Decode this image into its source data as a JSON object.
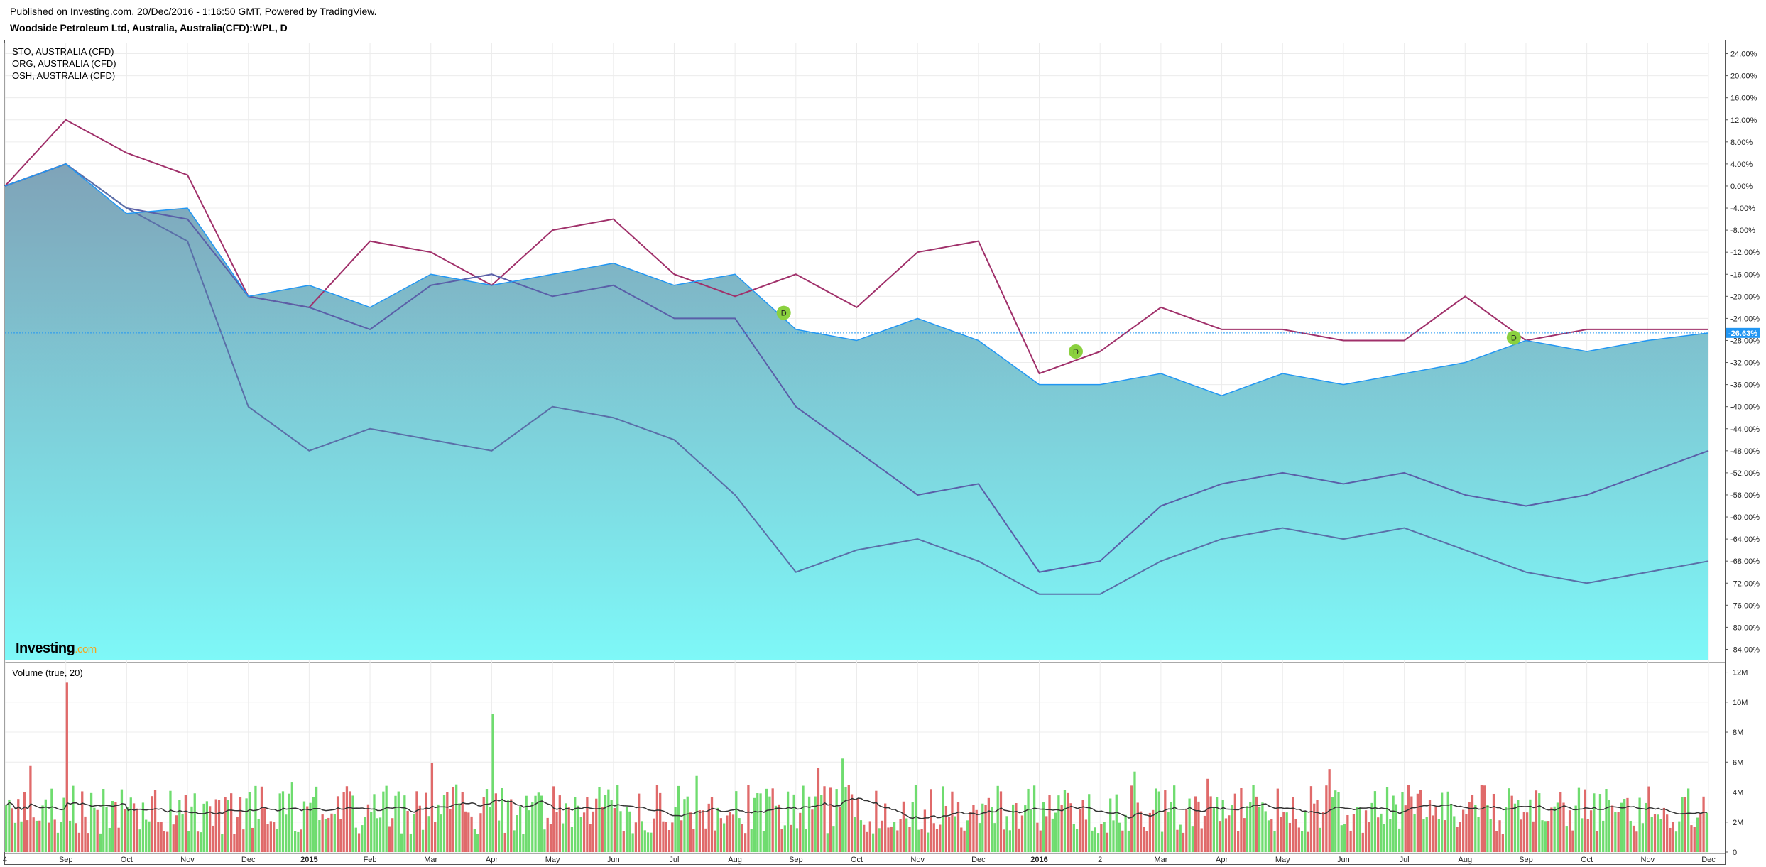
{
  "header": {
    "published": "Published on Investing.com, 20/Dec/2016 - 1:16:50 GMT, Powered by TradingView.",
    "symbol": "Woodside Petroleum Ltd, Australia, Australia(CFD):WPL, D"
  },
  "legend": [
    "STO, AUSTRALIA (CFD)",
    "ORG, AUSTRALIA (CFD)",
    "OSH, AUSTRALIA (CFD)"
  ],
  "volume_label": "Volume (true, 20)",
  "logo": {
    "main": "Investing",
    "suffix": ".com"
  },
  "last_value_label": "-26.63%",
  "colors": {
    "main_line": "#2196f3",
    "area_top": "#7fa3b8",
    "area_bottom": "#7ef8f8",
    "sto": "#a0306a",
    "org": "#5a5fa8",
    "osh": "#5a6fa8",
    "vol_up": "#6fdc6f",
    "vol_down": "#e06a6a",
    "vol_ma": "#333333",
    "dividend": "#8bd13f"
  },
  "chart_data": [
    {
      "type": "area",
      "title": "",
      "x_ticks": [
        "4",
        "Sep",
        "Oct",
        "Nov",
        "Dec",
        "2015",
        "Feb",
        "Mar",
        "Apr",
        "May",
        "Jun",
        "Jul",
        "Aug",
        "Sep",
        "Oct",
        "Nov",
        "Dec",
        "2016",
        "2",
        "Mar",
        "Apr",
        "May",
        "Jun",
        "Jul",
        "Aug",
        "Sep",
        "Oct",
        "Nov",
        "Dec"
      ],
      "y_ticks": [
        "24.00%",
        "20.00%",
        "16.00%",
        "12.00%",
        "8.00%",
        "4.00%",
        "0.00%",
        "-4.00%",
        "-8.00%",
        "-12.00%",
        "-16.00%",
        "-20.00%",
        "-24.00%",
        "-28.00%",
        "-32.00%",
        "-36.00%",
        "-40.00%",
        "-44.00%",
        "-48.00%",
        "-52.00%",
        "-56.00%",
        "-60.00%",
        "-64.00%",
        "-68.00%",
        "-72.00%",
        "-76.00%",
        "-80.00%",
        "-84.00%"
      ],
      "ylim": [
        -86,
        26
      ],
      "x": [
        0,
        1,
        2,
        3,
        4,
        5,
        6,
        7,
        8,
        9,
        10,
        11,
        12,
        13,
        14,
        15,
        16,
        17,
        18,
        19,
        20,
        21,
        22,
        23,
        24,
        25,
        26,
        27,
        28
      ],
      "series": [
        {
          "name": "Woodside Petroleum Ltd, Australia, Australia(CFD):WPL, D",
          "values": [
            0,
            4,
            -5,
            -4,
            -20,
            -18,
            -22,
            -16,
            -18,
            -16,
            -14,
            -18,
            -16,
            -26,
            -28,
            -24,
            -28,
            -36,
            -36,
            -34,
            -38,
            -34,
            -36,
            -34,
            -32,
            -28,
            -30,
            -28,
            -26.63
          ]
        },
        {
          "name": "STO, AUSTRALIA (CFD)",
          "values": [
            0,
            12,
            6,
            2,
            -20,
            -22,
            -10,
            -12,
            -18,
            -8,
            -6,
            -16,
            -20,
            -16,
            -22,
            -12,
            -10,
            -34,
            -30,
            -22,
            -26,
            -26,
            -28,
            -28,
            -20,
            -28,
            -26,
            -26,
            -26
          ]
        },
        {
          "name": "ORG, AUSTRALIA (CFD)",
          "values": [
            0,
            4,
            -4,
            -6,
            -20,
            -22,
            -26,
            -18,
            -16,
            -20,
            -18,
            -24,
            -24,
            -40,
            -48,
            -56,
            -54,
            -70,
            -68,
            -58,
            -54,
            -52,
            -54,
            -52,
            -56,
            -58,
            -56,
            -52,
            -48
          ]
        },
        {
          "name": "OSH, AUSTRALIA (CFD)",
          "values": [
            0,
            4,
            -4,
            -10,
            -40,
            -48,
            -44,
            -46,
            -48,
            -40,
            -42,
            -46,
            -56,
            -70,
            -66,
            -64,
            -68,
            -74,
            -74,
            -68,
            -64,
            -62,
            -64,
            -62,
            -66,
            -70,
            -72,
            -70,
            -68
          ]
        }
      ],
      "dividend_markers": [
        {
          "label": "D",
          "x": 12.8,
          "y": -23
        },
        {
          "label": "D",
          "x": 17.6,
          "y": -30
        },
        {
          "label": "D",
          "x": 24.8,
          "y": -27.5
        }
      ]
    },
    {
      "type": "bar",
      "title": "Volume (true, 20)",
      "y_ticks": [
        "12M",
        "10M",
        "8M",
        "6M",
        "4M",
        "2M",
        "0"
      ],
      "ylim": [
        0,
        12.5
      ],
      "unit": "M",
      "note_peaks": [
        {
          "x": 1,
          "value": 11.3
        },
        {
          "x": 8,
          "value": 9.2
        }
      ],
      "typical_range": [
        1.2,
        4.5
      ]
    }
  ]
}
